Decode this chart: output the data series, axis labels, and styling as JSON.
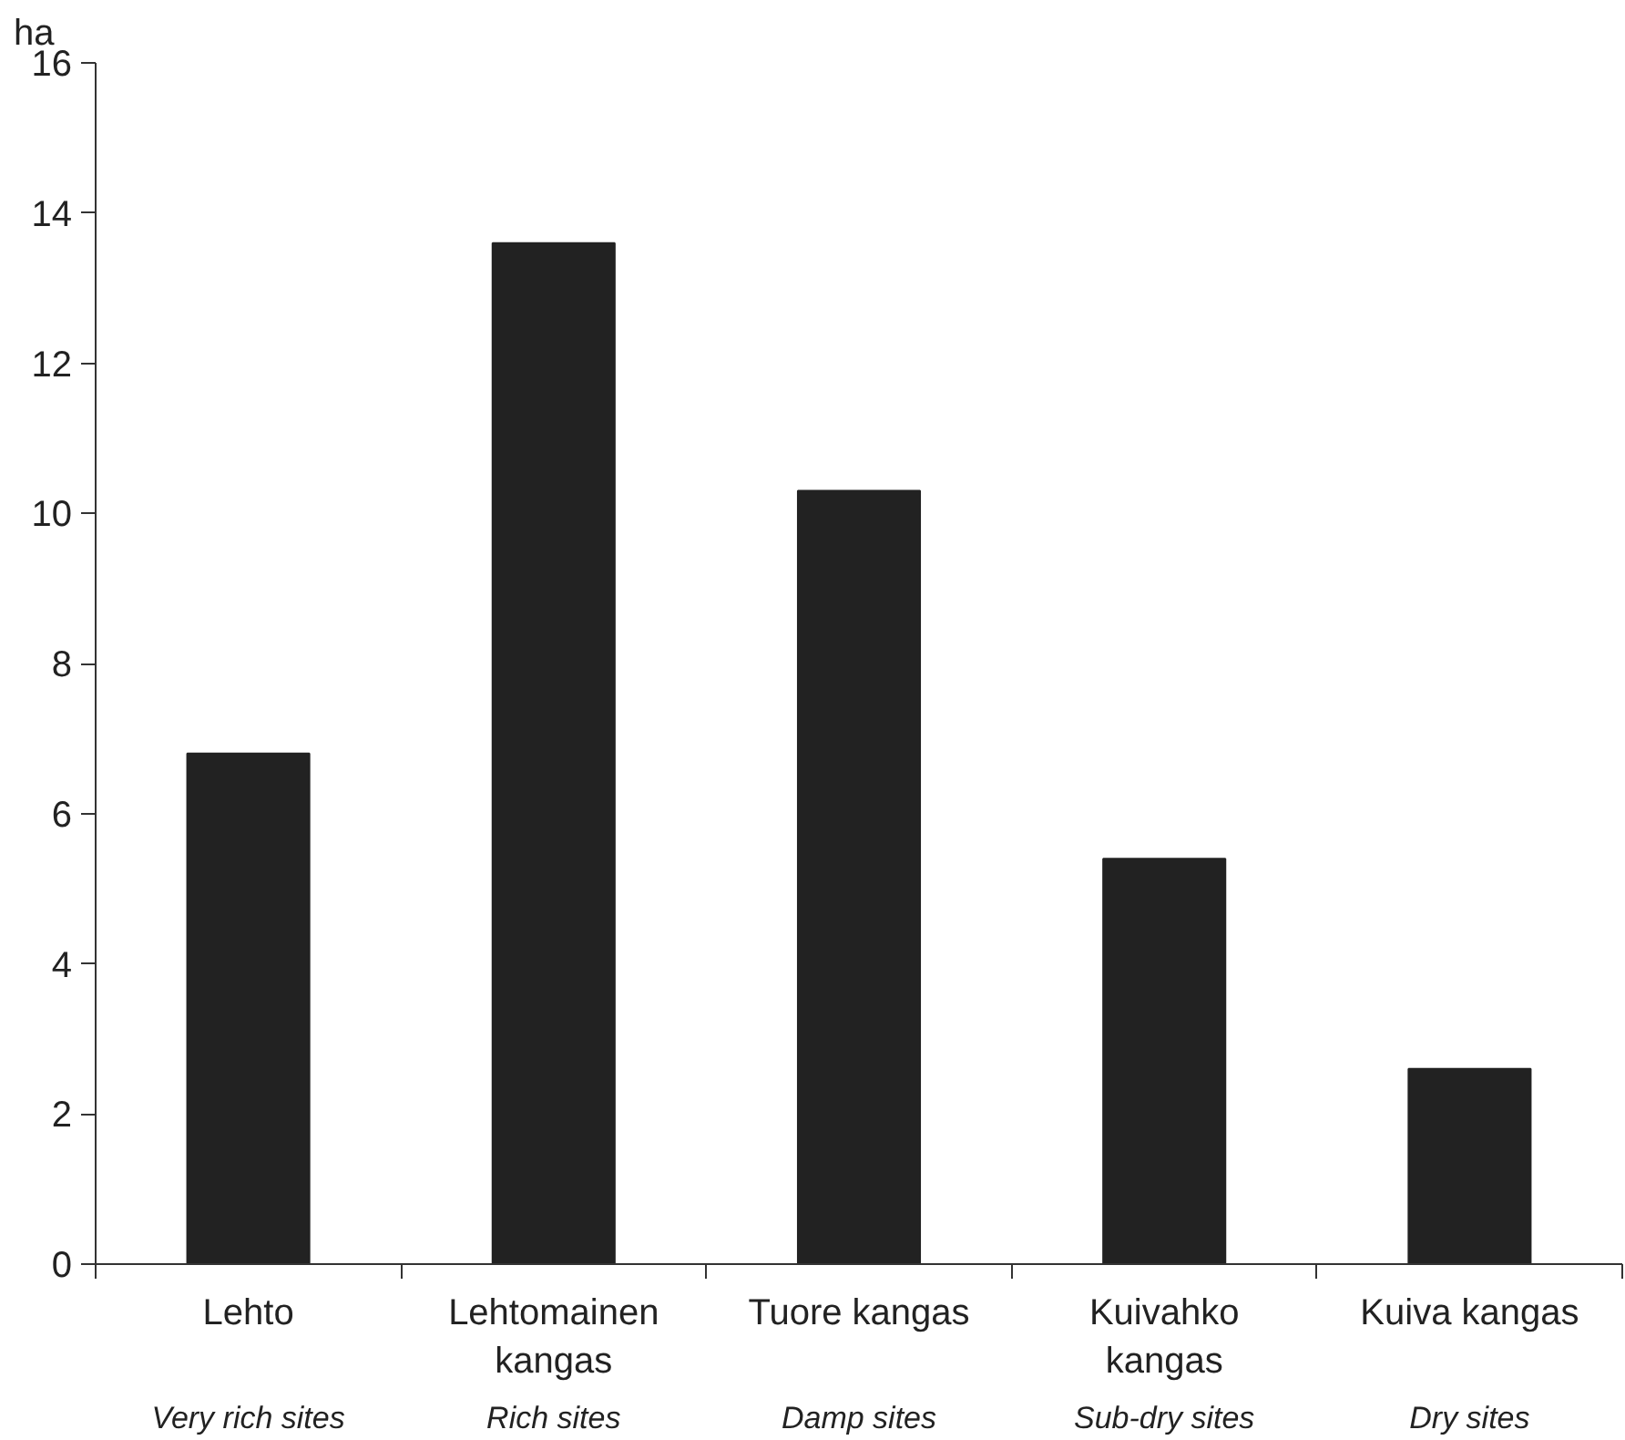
{
  "chart_data": {
    "type": "bar",
    "ylabel": "ha",
    "categories": [
      "Lehto\nVery rich sites",
      "Lehtomainen\nkangas\nRich sites",
      "Tuore kangas\nDamp sites",
      "Kuivahko\nkangas\nSub-dry sites",
      "Kuiva kangas\nDry sites"
    ],
    "values": [
      6.8,
      13.6,
      10.3,
      5.4,
      2.6
    ],
    "color": "#222222",
    "ylim": [
      0,
      16
    ],
    "yticks": [
      0,
      2,
      4,
      6,
      8,
      10,
      12,
      14,
      16
    ],
    "grid": false
  }
}
